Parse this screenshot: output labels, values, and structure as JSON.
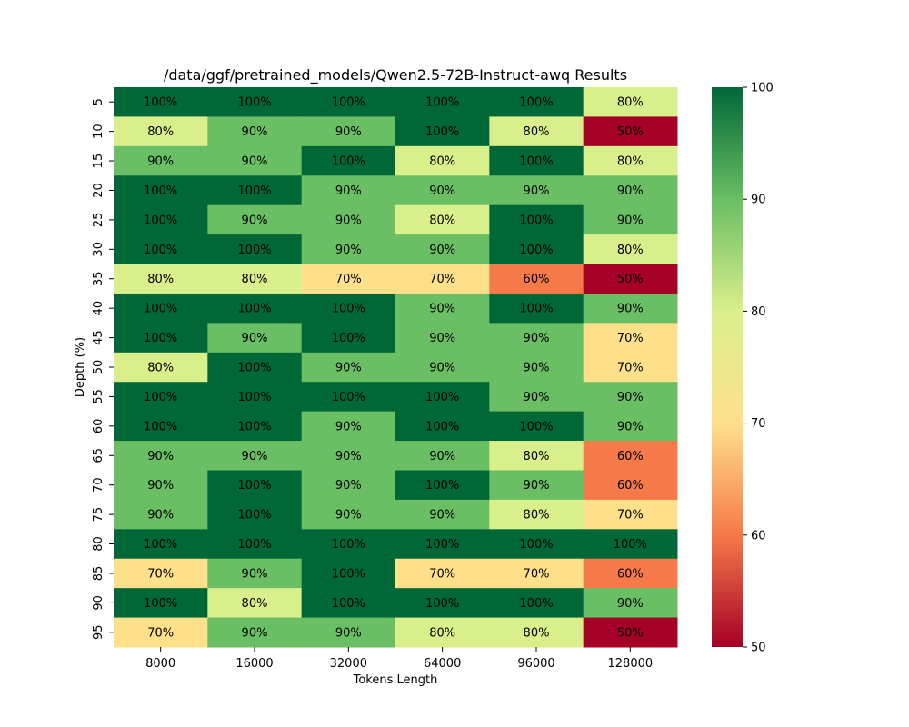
{
  "chart_data": {
    "type": "heatmap",
    "title": "/data/ggf/pretrained_models/Qwen2.5-72B-Instruct-awq Results",
    "xlabel": "Tokens Length",
    "ylabel": "Depth (%)",
    "x": [
      "8000",
      "16000",
      "32000",
      "64000",
      "96000",
      "128000"
    ],
    "y": [
      "5",
      "10",
      "15",
      "20",
      "25",
      "30",
      "35",
      "40",
      "45",
      "50",
      "55",
      "60",
      "65",
      "70",
      "75",
      "80",
      "85",
      "90",
      "95"
    ],
    "values": [
      [
        100,
        100,
        100,
        100,
        100,
        80
      ],
      [
        80,
        90,
        90,
        100,
        80,
        50
      ],
      [
        90,
        90,
        100,
        80,
        100,
        80
      ],
      [
        100,
        100,
        90,
        90,
        90,
        90
      ],
      [
        100,
        90,
        90,
        80,
        100,
        90
      ],
      [
        100,
        100,
        90,
        90,
        100,
        80
      ],
      [
        80,
        80,
        70,
        70,
        60,
        50
      ],
      [
        100,
        100,
        100,
        90,
        100,
        90
      ],
      [
        100,
        90,
        100,
        90,
        90,
        70
      ],
      [
        80,
        100,
        90,
        90,
        90,
        70
      ],
      [
        100,
        100,
        100,
        100,
        90,
        90
      ],
      [
        100,
        100,
        90,
        100,
        100,
        90
      ],
      [
        90,
        90,
        90,
        90,
        80,
        60
      ],
      [
        90,
        100,
        90,
        100,
        90,
        60
      ],
      [
        90,
        100,
        90,
        90,
        80,
        70
      ],
      [
        100,
        100,
        100,
        100,
        100,
        100
      ],
      [
        70,
        90,
        100,
        70,
        70,
        60
      ],
      [
        100,
        80,
        100,
        100,
        100,
        90
      ],
      [
        70,
        90,
        90,
        80,
        80,
        50
      ]
    ],
    "value_suffix": "%",
    "colorbar": {
      "range": [
        50,
        100
      ],
      "ticks": [
        "50",
        "60",
        "70",
        "80",
        "90",
        "100"
      ],
      "colormap": "RdYlGn",
      "stops": {
        "50": "#a50026",
        "60": "#f67a49",
        "70": "#fee08b",
        "80": "#d9ef8b",
        "90": "#6abe63",
        "100": "#006837"
      }
    }
  }
}
